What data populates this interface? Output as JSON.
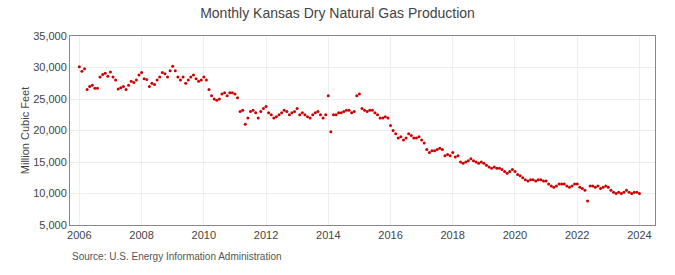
{
  "chart_data": {
    "type": "scatter",
    "title": "Monthly Kansas Dry Natural Gas Production",
    "ylabel": "Million Cubic Feet",
    "annotations": [
      "Source: U.S. Energy Information Administration"
    ],
    "color": "#cc0000",
    "grid": true,
    "xlim": [
      2005.7,
      2024.5
    ],
    "xticks": [
      2006,
      2008,
      2010,
      2012,
      2014,
      2016,
      2018,
      2020,
      2022,
      2024
    ],
    "ylim": [
      5000,
      35000
    ],
    "yticks": [
      {
        "value": 5000,
        "label": "5,000"
      },
      {
        "value": 10000,
        "label": "10,000"
      },
      {
        "value": 15000,
        "label": "15,000"
      },
      {
        "value": 20000,
        "label": "20,000"
      },
      {
        "value": 25000,
        "label": "25,000"
      },
      {
        "value": 30000,
        "label": "30,000"
      },
      {
        "value": 35000,
        "label": "35,000"
      }
    ],
    "x": [
      2006.0,
      2006.083,
      2006.167,
      2006.25,
      2006.333,
      2006.417,
      2006.5,
      2006.583,
      2006.667,
      2006.75,
      2006.833,
      2006.917,
      2007.0,
      2007.083,
      2007.167,
      2007.25,
      2007.333,
      2007.417,
      2007.5,
      2007.583,
      2007.667,
      2007.75,
      2007.833,
      2007.917,
      2008.0,
      2008.083,
      2008.167,
      2008.25,
      2008.333,
      2008.417,
      2008.5,
      2008.583,
      2008.667,
      2008.75,
      2008.833,
      2008.917,
      2009.0,
      2009.083,
      2009.167,
      2009.25,
      2009.333,
      2009.417,
      2009.5,
      2009.583,
      2009.667,
      2009.75,
      2009.833,
      2009.917,
      2010.0,
      2010.083,
      2010.167,
      2010.25,
      2010.333,
      2010.417,
      2010.5,
      2010.583,
      2010.667,
      2010.75,
      2010.833,
      2010.917,
      2011.0,
      2011.083,
      2011.167,
      2011.25,
      2011.333,
      2011.417,
      2011.5,
      2011.583,
      2011.667,
      2011.75,
      2011.833,
      2011.917,
      2012.0,
      2012.083,
      2012.167,
      2012.25,
      2012.333,
      2012.417,
      2012.5,
      2012.583,
      2012.667,
      2012.75,
      2012.833,
      2012.917,
      2013.0,
      2013.083,
      2013.167,
      2013.25,
      2013.333,
      2013.417,
      2013.5,
      2013.583,
      2013.667,
      2013.75,
      2013.833,
      2013.917,
      2014.0,
      2014.083,
      2014.167,
      2014.25,
      2014.333,
      2014.417,
      2014.5,
      2014.583,
      2014.667,
      2014.75,
      2014.833,
      2014.917,
      2015.0,
      2015.083,
      2015.167,
      2015.25,
      2015.333,
      2015.417,
      2015.5,
      2015.583,
      2015.667,
      2015.75,
      2015.833,
      2015.917,
      2016.0,
      2016.083,
      2016.167,
      2016.25,
      2016.333,
      2016.417,
      2016.5,
      2016.583,
      2016.667,
      2016.75,
      2016.833,
      2016.917,
      2017.0,
      2017.083,
      2017.167,
      2017.25,
      2017.333,
      2017.417,
      2017.5,
      2017.583,
      2017.667,
      2017.75,
      2017.833,
      2017.917,
      2018.0,
      2018.083,
      2018.167,
      2018.25,
      2018.333,
      2018.417,
      2018.5,
      2018.583,
      2018.667,
      2018.75,
      2018.833,
      2018.917,
      2019.0,
      2019.083,
      2019.167,
      2019.25,
      2019.333,
      2019.417,
      2019.5,
      2019.583,
      2019.667,
      2019.75,
      2019.833,
      2019.917,
      2020.0,
      2020.083,
      2020.167,
      2020.25,
      2020.333,
      2020.417,
      2020.5,
      2020.583,
      2020.667,
      2020.75,
      2020.833,
      2020.917,
      2021.0,
      2021.083,
      2021.167,
      2021.25,
      2021.333,
      2021.417,
      2021.5,
      2021.583,
      2021.667,
      2021.75,
      2021.833,
      2021.917,
      2022.0,
      2022.083,
      2022.167,
      2022.25,
      2022.333,
      2022.417,
      2022.5,
      2022.583,
      2022.667,
      2022.75,
      2022.833,
      2022.917,
      2023.0,
      2023.083,
      2023.167,
      2023.25,
      2023.333,
      2023.417,
      2023.5,
      2023.583,
      2023.667,
      2023.75,
      2023.833,
      2023.917,
      2024.0
    ],
    "values": [
      30100,
      29400,
      29800,
      26500,
      27000,
      27200,
      26700,
      26700,
      28500,
      28900,
      29100,
      28600,
      29300,
      28500,
      28000,
      26600,
      26800,
      27000,
      26500,
      27200,
      27800,
      27600,
      28000,
      28800,
      29200,
      28200,
      28100,
      27000,
      27500,
      27300,
      28000,
      28500,
      29200,
      29000,
      28500,
      29500,
      30200,
      29500,
      28500,
      28000,
      28500,
      27500,
      28000,
      28500,
      28800,
      28200,
      27800,
      28000,
      28500,
      28000,
      26500,
      25500,
      25000,
      24800,
      25000,
      25800,
      26000,
      25500,
      26000,
      26000,
      25800,
      25200,
      23000,
      23200,
      21000,
      22000,
      23000,
      23200,
      22800,
      22000,
      23000,
      23500,
      23800,
      22800,
      22500,
      22000,
      22200,
      22500,
      22800,
      23200,
      23000,
      22500,
      22800,
      23000,
      23500,
      22500,
      22800,
      22500,
      22200,
      22000,
      22500,
      22800,
      23000,
      22500,
      22000,
      22500,
      25500,
      19800,
      22500,
      22500,
      22800,
      22800,
      23000,
      23200,
      23200,
      22800,
      23000,
      25500,
      25800,
      23500,
      23200,
      23000,
      23200,
      23200,
      22800,
      22500,
      22000,
      22000,
      22200,
      22000,
      20800,
      20000,
      19500,
      18800,
      19000,
      18500,
      18800,
      19500,
      19200,
      18800,
      18800,
      19000,
      18500,
      18000,
      17000,
      16500,
      16800,
      16800,
      17000,
      17200,
      17000,
      16000,
      16200,
      16000,
      16500,
      15800,
      16000,
      15000,
      14800,
      15000,
      15200,
      15500,
      15200,
      15000,
      14800,
      15000,
      14800,
      14500,
      14200,
      14000,
      14200,
      14000,
      14000,
      13800,
      13500,
      13200,
      13500,
      13800,
      13500,
      13000,
      12800,
      12500,
      12200,
      12000,
      12200,
      12200,
      12000,
      12200,
      12200,
      12000,
      12000,
      11500,
      11200,
      11000,
      11200,
      11500,
      11500,
      11500,
      11200,
      11000,
      11200,
      11500,
      11500,
      11000,
      10800,
      10500,
      8800,
      11200,
      11200,
      11000,
      11200,
      10800,
      11000,
      11200,
      11000,
      10500,
      10200,
      10000,
      10200,
      10000,
      10200,
      10500,
      10200,
      10000,
      10200,
      10200,
      10000
    ]
  }
}
